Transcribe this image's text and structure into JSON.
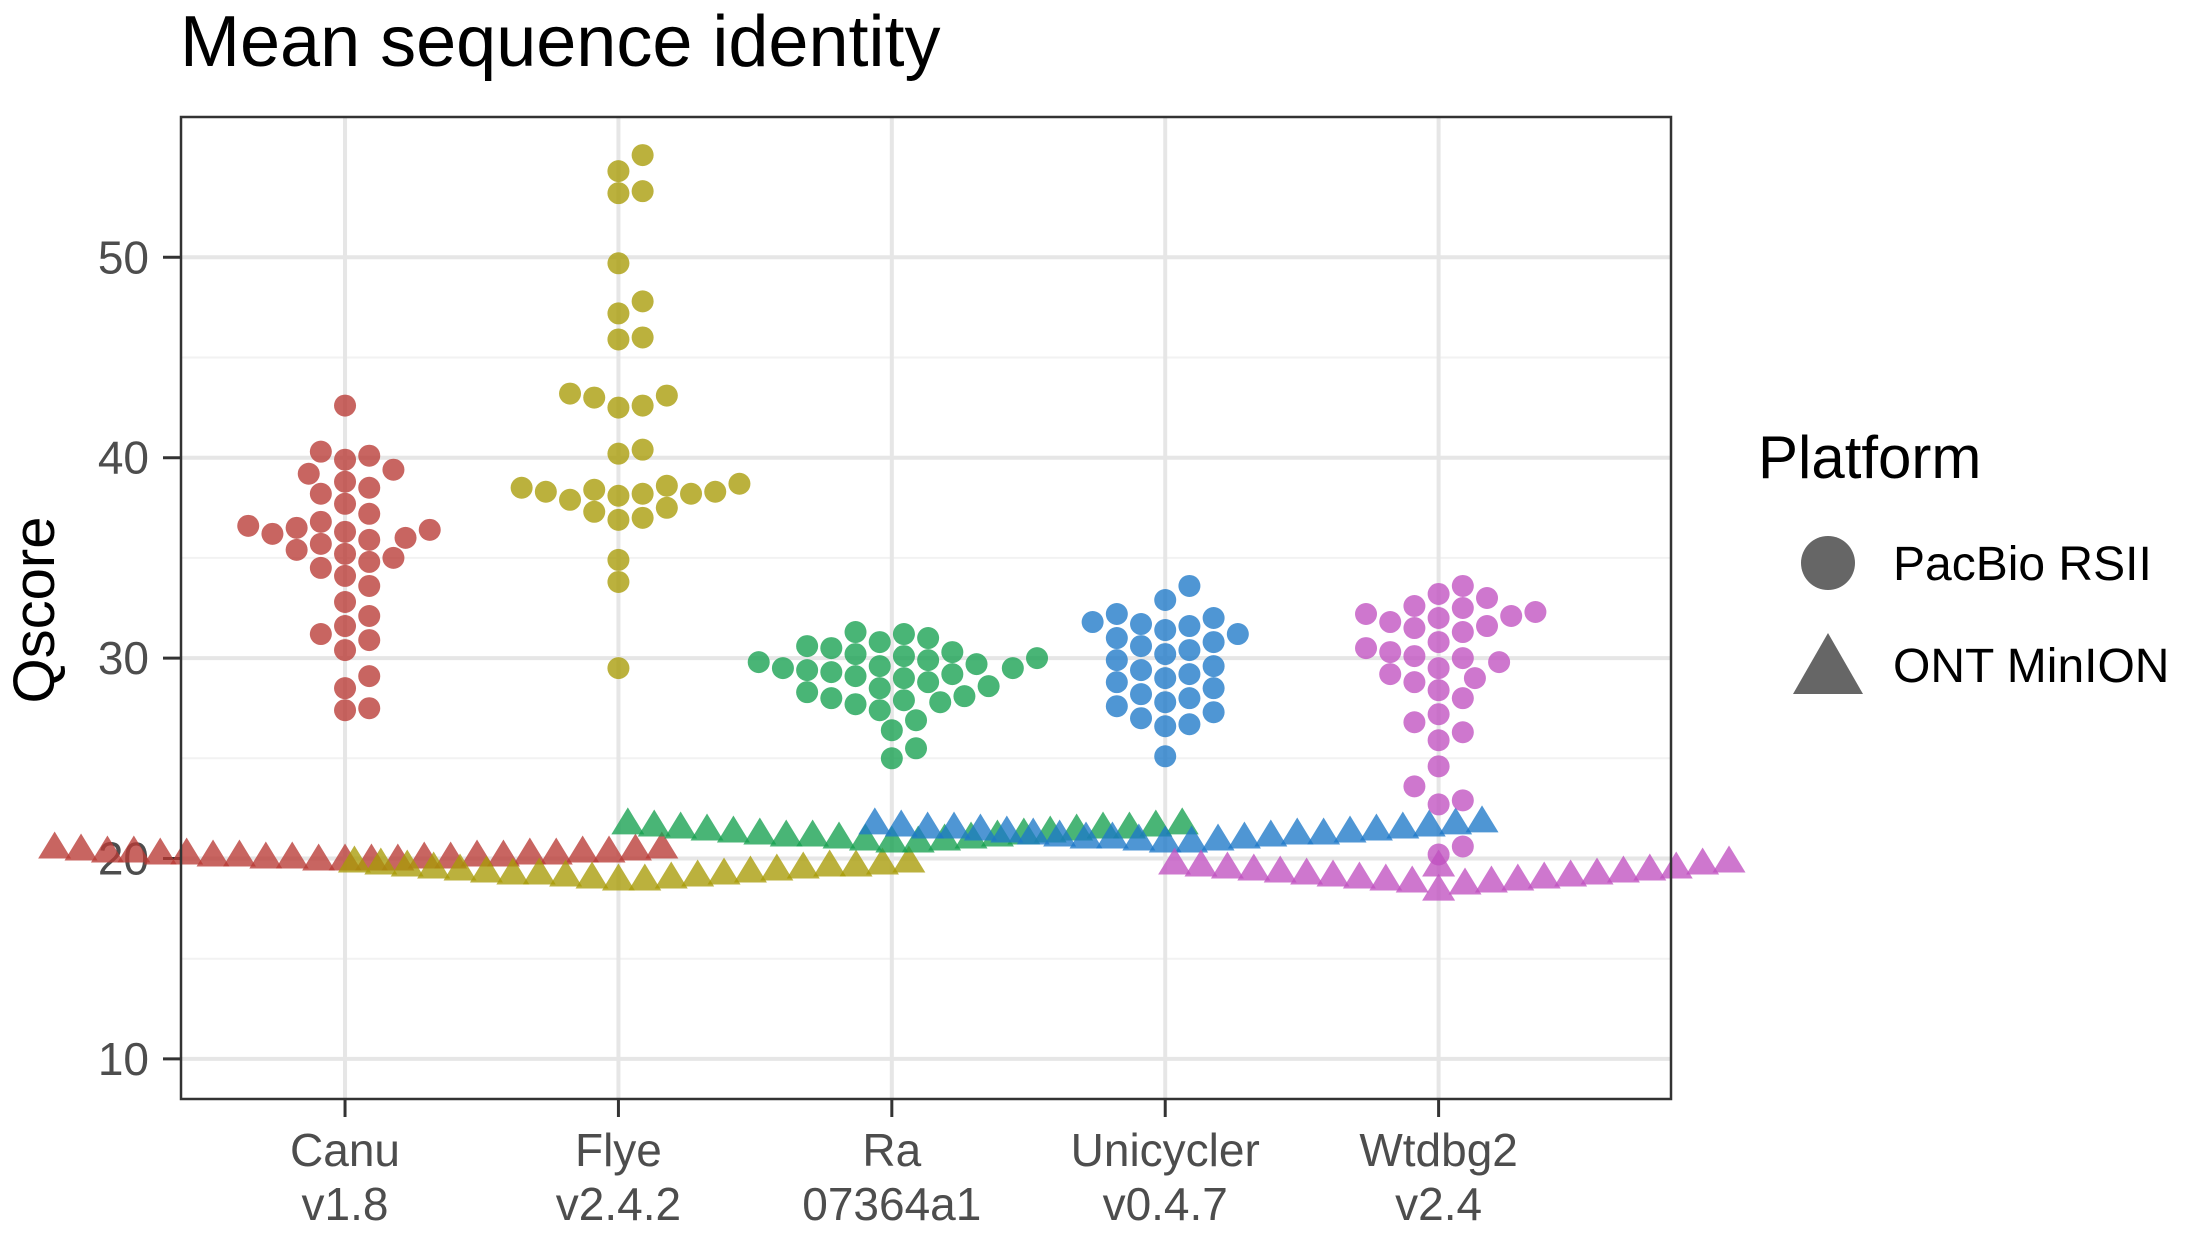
{
  "chart_data": {
    "type": "scatter",
    "title": "Mean sequence identity",
    "xlabel": "",
    "ylabel": "Qscore",
    "ylim": [
      8,
      57
    ],
    "yticks": [
      10,
      20,
      30,
      40,
      50
    ],
    "grid": true,
    "legend": {
      "title": "Platform",
      "position": "right",
      "entries": [
        {
          "label": "PacBio RSII",
          "shape": "circle"
        },
        {
          "label": "ONT MinION",
          "shape": "triangle"
        }
      ]
    },
    "categories": [
      {
        "name": "Canu",
        "version": "v1.8",
        "color": "#B83A34",
        "pacbio": [
          42.6,
          40.3,
          40.1,
          39.9,
          39.4,
          39.2,
          38.8,
          38.5,
          38.2,
          37.7,
          37.2,
          36.8,
          36.6,
          36.5,
          36.4,
          36.3,
          36.2,
          36.0,
          35.9,
          35.7,
          35.4,
          35.2,
          35.0,
          34.8,
          34.5,
          34.1,
          33.6,
          32.8,
          32.1,
          31.6,
          31.2,
          30.9,
          30.4,
          29.1,
          28.5,
          27.5,
          27.4
        ],
        "ont": [
          20.6,
          20.5,
          20.4,
          20.4,
          20.3,
          20.3,
          20.2,
          20.2,
          20.1,
          20.1,
          20.0,
          20.0,
          20.5,
          20.3,
          20.1,
          20.4,
          20.2,
          20.0,
          20.6,
          20.3,
          20.1,
          20.2,
          20.4,
          20.0
        ]
      },
      {
        "name": "Flye",
        "version": "v2.4.2",
        "color": "#A89B07",
        "pacbio": [
          55.1,
          54.3,
          53.3,
          53.2,
          49.7,
          47.8,
          47.2,
          46.0,
          45.9,
          43.2,
          43.1,
          43.0,
          42.6,
          42.5,
          40.4,
          40.2,
          38.7,
          38.6,
          38.5,
          38.4,
          38.3,
          38.3,
          38.2,
          38.2,
          38.1,
          37.9,
          37.5,
          37.3,
          37.0,
          36.9,
          34.9,
          33.8,
          29.5
        ],
        "ont": [
          19.9,
          19.8,
          19.7,
          19.6,
          19.5,
          19.4,
          19.3,
          19.2,
          19.1,
          19.0,
          19.9,
          19.7,
          19.5,
          19.3,
          19.1,
          19.8,
          19.6,
          19.4,
          19.2,
          19.0,
          19.7,
          19.3
        ]
      },
      {
        "name": "Ra",
        "version": "07364a1",
        "color": "#16A050",
        "pacbio": [
          31.3,
          31.2,
          31.0,
          30.8,
          30.6,
          30.5,
          30.3,
          30.2,
          30.1,
          30.0,
          29.9,
          29.8,
          29.7,
          29.6,
          29.5,
          29.5,
          29.4,
          29.3,
          29.2,
          29.1,
          29.0,
          28.8,
          28.6,
          28.5,
          28.3,
          28.1,
          28.0,
          27.9,
          27.8,
          27.7,
          27.4,
          26.9,
          26.4,
          25.5,
          25.0
        ],
        "ont": [
          21.8,
          21.7,
          21.6,
          21.5,
          21.4,
          21.3,
          21.2,
          21.1,
          21.0,
          20.9,
          21.8,
          21.6,
          21.4,
          21.2,
          21.0,
          21.7,
          21.5,
          21.3,
          21.1,
          20.9,
          21.6,
          21.2
        ]
      },
      {
        "name": "Unicycler",
        "version": "v0.4.7",
        "color": "#1E78C8",
        "pacbio": [
          33.6,
          32.9,
          32.2,
          32.0,
          31.8,
          31.7,
          31.6,
          31.4,
          31.2,
          31.0,
          30.8,
          30.6,
          30.4,
          30.2,
          29.9,
          29.6,
          29.4,
          29.2,
          29.0,
          28.8,
          28.5,
          28.2,
          28.0,
          27.8,
          27.6,
          27.3,
          27.0,
          26.7,
          26.6,
          25.1
        ],
        "ont": [
          21.9,
          21.8,
          21.7,
          21.6,
          21.5,
          21.4,
          21.3,
          21.2,
          21.1,
          21.0,
          20.9,
          21.8,
          21.6,
          21.4,
          21.2,
          21.0,
          21.7,
          21.5,
          21.3,
          21.1,
          20.9,
          21.6,
          21.3,
          21.1
        ]
      },
      {
        "name": "Wtdbg2",
        "version": "v2.4",
        "color": "#C051C0",
        "pacbio": [
          33.6,
          33.2,
          33.0,
          32.6,
          32.5,
          32.3,
          32.2,
          32.1,
          32.0,
          31.8,
          31.6,
          31.5,
          31.3,
          30.8,
          30.5,
          30.3,
          30.1,
          30.0,
          29.8,
          29.5,
          29.2,
          29.0,
          28.8,
          28.4,
          28.0,
          27.2,
          26.8,
          26.3,
          25.9,
          24.6,
          23.6,
          22.9,
          22.7,
          20.6,
          20.2
        ],
        "ont": [
          19.9,
          19.8,
          19.7,
          19.6,
          19.5,
          19.4,
          19.3,
          19.2,
          19.1,
          19.0,
          18.9,
          18.8,
          18.5,
          19.8,
          19.5,
          19.3,
          19.1,
          18.9,
          19.7,
          19.4,
          19.2,
          19.0,
          19.6
        ]
      }
    ]
  }
}
